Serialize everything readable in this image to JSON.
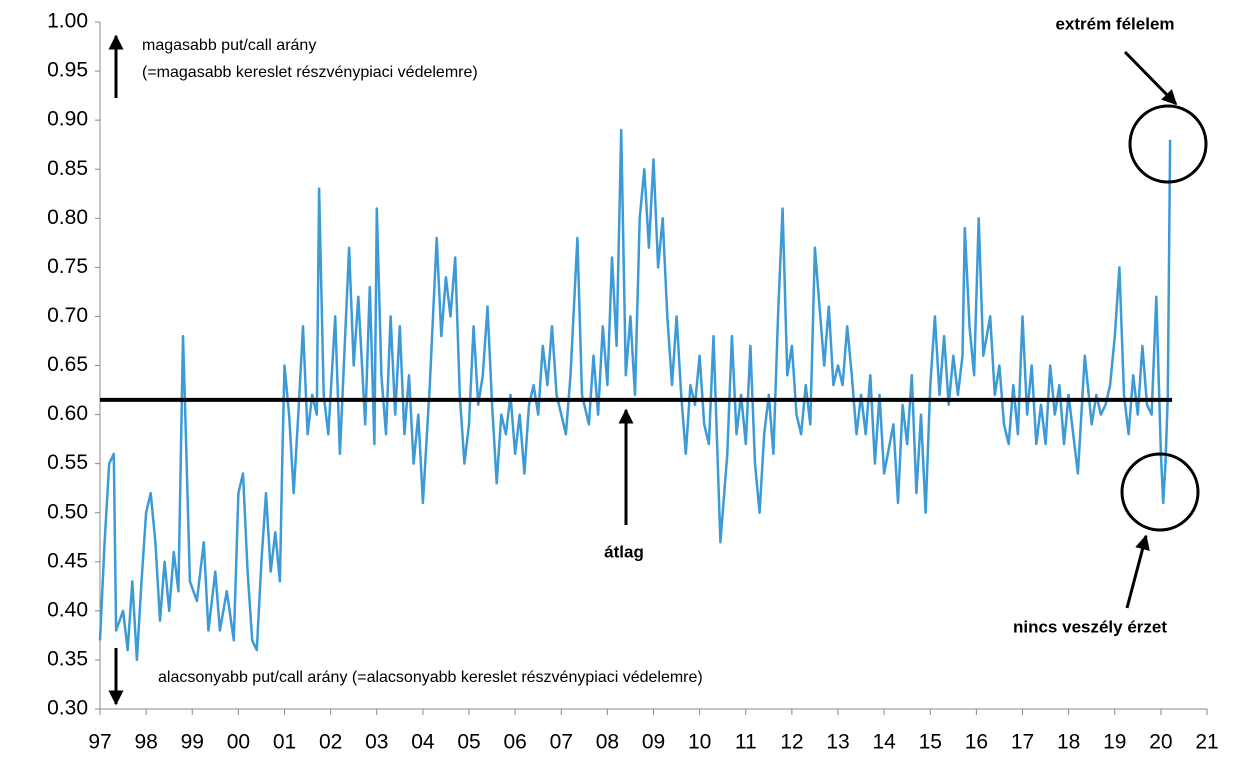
{
  "chart_data": {
    "type": "line",
    "x": [
      1997.0,
      1997.1,
      1997.2,
      1997.3,
      1997.35,
      1997.5,
      1997.6,
      1997.7,
      1997.8,
      1997.9,
      1998.0,
      1998.1,
      1998.2,
      1998.3,
      1998.4,
      1998.5,
      1998.6,
      1998.7,
      1998.8,
      1998.85,
      1998.95,
      1999.1,
      1999.25,
      1999.35,
      1999.5,
      1999.6,
      1999.75,
      1999.9,
      2000.0,
      2000.1,
      2000.2,
      2000.3,
      2000.4,
      2000.5,
      2000.6,
      2000.7,
      2000.8,
      2000.9,
      2000.95,
      2001.0,
      2001.1,
      2001.2,
      2001.3,
      2001.4,
      2001.5,
      2001.6,
      2001.7,
      2001.75,
      2001.85,
      2001.95,
      2002.1,
      2002.2,
      2002.4,
      2002.5,
      2002.6,
      2002.75,
      2002.85,
      2002.95,
      2003.0,
      2003.1,
      2003.2,
      2003.3,
      2003.4,
      2003.5,
      2003.6,
      2003.7,
      2003.8,
      2003.9,
      2004.0,
      2004.15,
      2004.3,
      2004.4,
      2004.5,
      2004.6,
      2004.7,
      2004.8,
      2004.9,
      2005.0,
      2005.1,
      2005.2,
      2005.3,
      2005.4,
      2005.5,
      2005.6,
      2005.7,
      2005.8,
      2005.9,
      2006.0,
      2006.1,
      2006.2,
      2006.3,
      2006.4,
      2006.5,
      2006.6,
      2006.7,
      2006.8,
      2006.9,
      2007.0,
      2007.1,
      2007.2,
      2007.35,
      2007.45,
      2007.6,
      2007.7,
      2007.8,
      2007.9,
      2008.0,
      2008.1,
      2008.2,
      2008.3,
      2008.4,
      2008.5,
      2008.6,
      2008.7,
      2008.8,
      2008.9,
      2009.0,
      2009.1,
      2009.2,
      2009.3,
      2009.4,
      2009.5,
      2009.6,
      2009.7,
      2009.8,
      2009.9,
      2010.0,
      2010.1,
      2010.2,
      2010.3,
      2010.45,
      2010.6,
      2010.7,
      2010.8,
      2010.9,
      2011.0,
      2011.1,
      2011.2,
      2011.3,
      2011.4,
      2011.5,
      2011.6,
      2011.7,
      2011.8,
      2011.9,
      2012.0,
      2012.1,
      2012.2,
      2012.3,
      2012.4,
      2012.5,
      2012.6,
      2012.7,
      2012.8,
      2012.9,
      2013.0,
      2013.1,
      2013.2,
      2013.3,
      2013.4,
      2013.5,
      2013.6,
      2013.7,
      2013.8,
      2013.9,
      2014.0,
      2014.2,
      2014.3,
      2014.4,
      2014.5,
      2014.6,
      2014.7,
      2014.8,
      2014.9,
      2015.0,
      2015.1,
      2015.2,
      2015.3,
      2015.4,
      2015.5,
      2015.6,
      2015.7,
      2015.75,
      2015.85,
      2015.95,
      2016.05,
      2016.15,
      2016.3,
      2016.4,
      2016.5,
      2016.6,
      2016.7,
      2016.8,
      2016.9,
      2017.0,
      2017.1,
      2017.2,
      2017.3,
      2017.4,
      2017.5,
      2017.6,
      2017.7,
      2017.8,
      2017.9,
      2018.0,
      2018.1,
      2018.2,
      2018.35,
      2018.5,
      2018.6,
      2018.7,
      2018.8,
      2018.9,
      2019.0,
      2019.1,
      2019.2,
      2019.3,
      2019.4,
      2019.5,
      2019.6,
      2019.7,
      2019.8,
      2019.9,
      2020.0,
      2020.05,
      2020.1,
      2020.15,
      2020.2
    ],
    "series": [
      {
        "color": "#3c9ad6",
        "values": [
          0.37,
          0.47,
          0.55,
          0.56,
          0.38,
          0.4,
          0.36,
          0.43,
          0.35,
          0.43,
          0.5,
          0.52,
          0.47,
          0.39,
          0.45,
          0.4,
          0.46,
          0.42,
          0.68,
          0.6,
          0.43,
          0.41,
          0.47,
          0.38,
          0.44,
          0.38,
          0.42,
          0.37,
          0.52,
          0.54,
          0.44,
          0.37,
          0.36,
          0.45,
          0.52,
          0.44,
          0.48,
          0.43,
          0.55,
          0.65,
          0.6,
          0.52,
          0.6,
          0.69,
          0.58,
          0.62,
          0.6,
          0.83,
          0.62,
          0.58,
          0.7,
          0.56,
          0.77,
          0.65,
          0.72,
          0.59,
          0.73,
          0.57,
          0.81,
          0.64,
          0.58,
          0.7,
          0.6,
          0.69,
          0.58,
          0.64,
          0.55,
          0.6,
          0.51,
          0.63,
          0.78,
          0.68,
          0.74,
          0.7,
          0.76,
          0.62,
          0.55,
          0.59,
          0.69,
          0.61,
          0.64,
          0.71,
          0.61,
          0.53,
          0.6,
          0.58,
          0.62,
          0.56,
          0.6,
          0.54,
          0.61,
          0.63,
          0.6,
          0.67,
          0.63,
          0.69,
          0.62,
          0.6,
          0.58,
          0.64,
          0.78,
          0.62,
          0.59,
          0.66,
          0.6,
          0.69,
          0.63,
          0.76,
          0.67,
          0.89,
          0.64,
          0.7,
          0.62,
          0.8,
          0.85,
          0.77,
          0.86,
          0.75,
          0.8,
          0.7,
          0.63,
          0.7,
          0.62,
          0.56,
          0.63,
          0.61,
          0.66,
          0.59,
          0.57,
          0.68,
          0.47,
          0.56,
          0.68,
          0.58,
          0.62,
          0.57,
          0.67,
          0.55,
          0.5,
          0.58,
          0.62,
          0.56,
          0.7,
          0.81,
          0.64,
          0.67,
          0.6,
          0.58,
          0.63,
          0.59,
          0.77,
          0.71,
          0.65,
          0.71,
          0.63,
          0.65,
          0.63,
          0.69,
          0.64,
          0.58,
          0.62,
          0.58,
          0.64,
          0.55,
          0.62,
          0.54,
          0.59,
          0.51,
          0.61,
          0.57,
          0.64,
          0.52,
          0.6,
          0.5,
          0.63,
          0.7,
          0.62,
          0.68,
          0.61,
          0.66,
          0.62,
          0.66,
          0.79,
          0.69,
          0.64,
          0.8,
          0.66,
          0.7,
          0.62,
          0.65,
          0.59,
          0.57,
          0.63,
          0.58,
          0.7,
          0.6,
          0.65,
          0.57,
          0.61,
          0.57,
          0.65,
          0.6,
          0.63,
          0.57,
          0.62,
          0.58,
          0.54,
          0.66,
          0.59,
          0.62,
          0.6,
          0.61,
          0.63,
          0.68,
          0.75,
          0.62,
          0.58,
          0.64,
          0.6,
          0.67,
          0.61,
          0.6,
          0.72,
          0.56,
          0.51,
          0.55,
          0.62,
          0.88
        ]
      }
    ],
    "mean_line": 0.615,
    "xlim": [
      1997,
      2021
    ],
    "xticks": [
      {
        "value": 1997,
        "label": "97"
      },
      {
        "value": 1998,
        "label": "98"
      },
      {
        "value": 1999,
        "label": "99"
      },
      {
        "value": 2000,
        "label": "00"
      },
      {
        "value": 2001,
        "label": "01"
      },
      {
        "value": 2002,
        "label": "02"
      },
      {
        "value": 2003,
        "label": "03"
      },
      {
        "value": 2004,
        "label": "04"
      },
      {
        "value": 2005,
        "label": "05"
      },
      {
        "value": 2006,
        "label": "06"
      },
      {
        "value": 2007,
        "label": "07"
      },
      {
        "value": 2008,
        "label": "08"
      },
      {
        "value": 2009,
        "label": "09"
      },
      {
        "value": 2010,
        "label": "10"
      },
      {
        "value": 2011,
        "label": "11"
      },
      {
        "value": 2012,
        "label": "12"
      },
      {
        "value": 2013,
        "label": "13"
      },
      {
        "value": 2014,
        "label": "14"
      },
      {
        "value": 2015,
        "label": "15"
      },
      {
        "value": 2016,
        "label": "16"
      },
      {
        "value": 2017,
        "label": "17"
      },
      {
        "value": 2018,
        "label": "18"
      },
      {
        "value": 2019,
        "label": "19"
      },
      {
        "value": 2020,
        "label": "20"
      },
      {
        "value": 2021,
        "label": "21"
      }
    ],
    "ylim": [
      0.3,
      1.0
    ],
    "yticks": [
      {
        "value": 0.3,
        "label": "0.30"
      },
      {
        "value": 0.35,
        "label": "0.35"
      },
      {
        "value": 0.4,
        "label": "0.40"
      },
      {
        "value": 0.45,
        "label": "0.45"
      },
      {
        "value": 0.5,
        "label": "0.50"
      },
      {
        "value": 0.55,
        "label": "0.55"
      },
      {
        "value": 0.6,
        "label": "0.60"
      },
      {
        "value": 0.65,
        "label": "0.65"
      },
      {
        "value": 0.7,
        "label": "0.70"
      },
      {
        "value": 0.75,
        "label": "0.75"
      },
      {
        "value": 0.8,
        "label": "0.80"
      },
      {
        "value": 0.85,
        "label": "0.85"
      },
      {
        "value": 0.9,
        "label": "0.90"
      },
      {
        "value": 0.95,
        "label": "0.95"
      },
      {
        "value": 1.0,
        "label": "1.00"
      }
    ],
    "annotations": {
      "upper_1": "magasabb put/call arány",
      "upper_2": "(=magasabb kereslet részvénypiaci védelemre)",
      "lower": "alacsonyabb put/call arány (=alacsonyabb kereslet részvénypiaci védelemre)",
      "mean": "átlag",
      "extreme": "extrém félelem",
      "calm": "nincs veszély érzet"
    }
  }
}
